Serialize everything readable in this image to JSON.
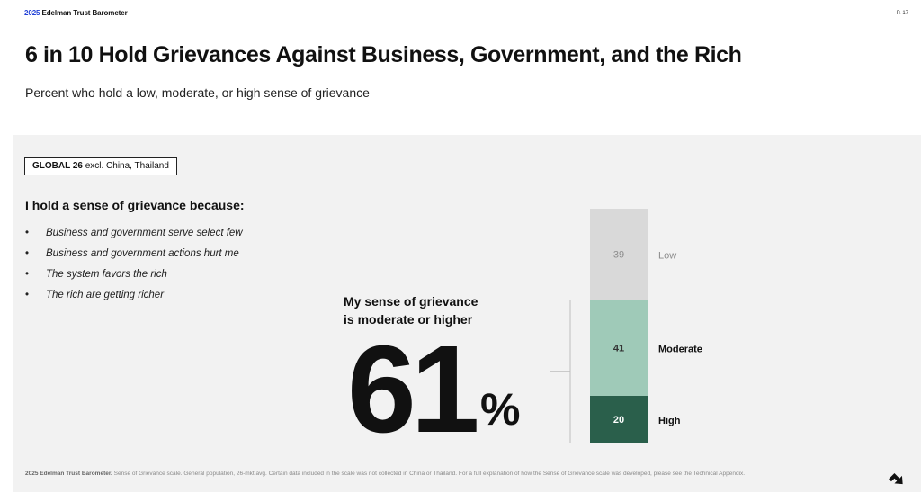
{
  "header": {
    "brand_year": "2025",
    "brand_name": "Edelman Trust Barometer",
    "page_number": "P. 17"
  },
  "title": "6 in 10 Hold Grievances Against Business, Government, and the Rich",
  "subtitle": "Percent who hold a low, moderate, or high sense of grievance",
  "region_tag": {
    "strong": "GLOBAL 26",
    "rest": " excl. China, Thailand"
  },
  "reasons": {
    "heading": "I hold a sense of grievance because:",
    "bullet": "•",
    "items": [
      "Business and government serve select few",
      "Business and government actions hurt me",
      "The system favors the rich",
      "The rich are getting richer"
    ]
  },
  "callout": {
    "line1": "My sense of grievance",
    "line2": "is moderate or higher",
    "value": "61",
    "unit": "%"
  },
  "chart_data": {
    "type": "bar",
    "stacked": true,
    "categories": [
      "Low",
      "Moderate",
      "High"
    ],
    "values": [
      39,
      41,
      20
    ],
    "colors": [
      "#d9d9d9",
      "#9fcab8",
      "#2a5f4b"
    ],
    "label_colors": [
      "#8c8c8c",
      "#333333",
      "#ffffff"
    ],
    "category_label_colors": [
      "#8c8c8c",
      "#111111",
      "#111111"
    ],
    "category_label_bold": [
      false,
      true,
      true
    ],
    "bracket_categories": [
      "Moderate",
      "High"
    ],
    "grid": false
  },
  "footnote": {
    "strong": "2025 Edelman Trust Barometer.",
    "text": " Sense of Grievance scale. General population, 26-mkt avg. Certain data included in the scale was not collected in China or Thailand. For a full explanation of how the Sense of Grievance scale was developed, please see the Technical Appendix."
  },
  "nav": {
    "next_icon": "arrow-down-right-icon"
  }
}
